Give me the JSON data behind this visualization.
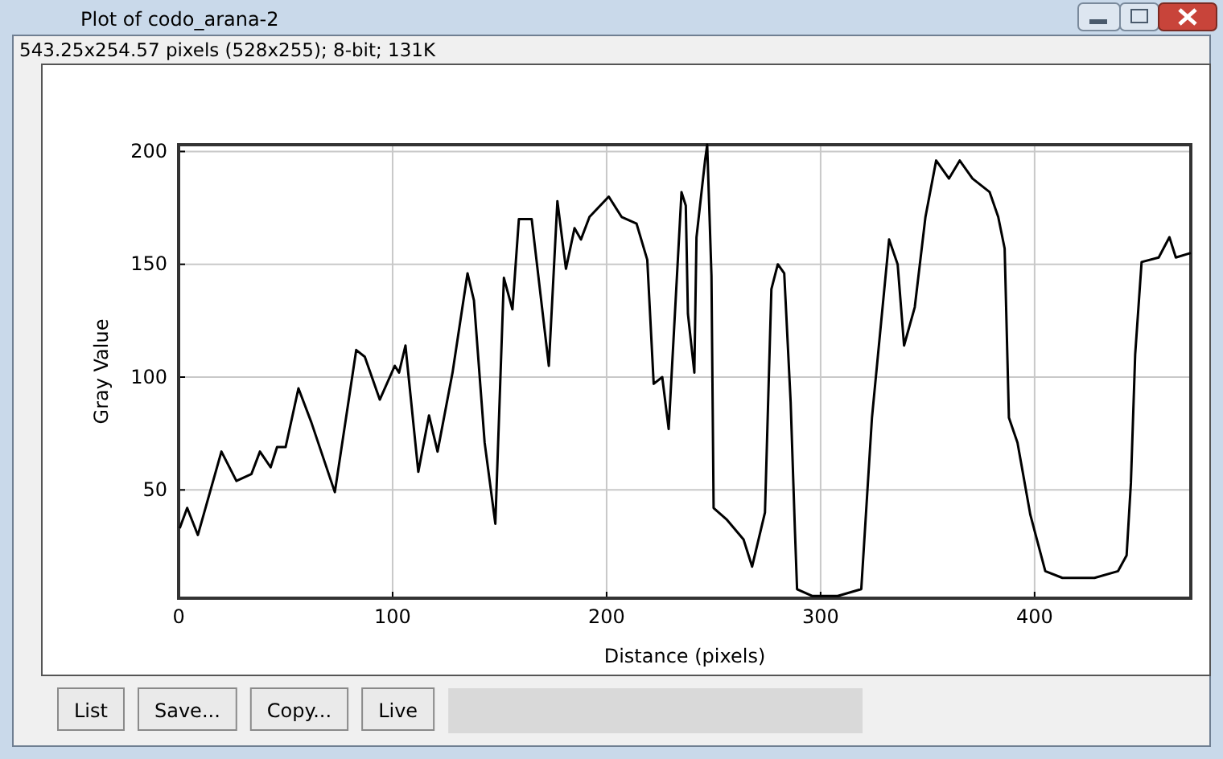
{
  "chart_data": {
    "type": "line",
    "title": "Plot of codo_arana-2",
    "subtitle": "543.25x254.57 pixels (528x255); 8-bit; 131K",
    "xlabel": "Distance (pixels)",
    "ylabel": "Gray Value",
    "annotations": [
      "List",
      "Save...",
      "Copy...",
      "Live"
    ],
    "x": [
      0.5,
      4,
      9,
      20,
      27,
      34,
      38,
      43,
      46,
      50,
      56,
      62,
      73,
      83,
      87,
      94,
      101,
      103,
      106,
      112,
      117,
      121,
      128,
      135,
      138,
      143,
      148,
      152,
      156,
      159,
      165,
      173,
      177,
      181,
      185,
      188,
      192,
      201,
      207,
      214,
      219,
      222,
      226,
      229,
      235,
      237,
      238,
      241,
      242,
      246,
      247,
      249,
      250,
      256,
      264,
      268,
      274,
      277,
      280,
      283,
      286,
      288,
      289,
      296,
      308,
      319,
      324,
      332,
      336,
      339,
      344,
      349,
      354,
      360,
      365,
      371,
      379,
      383,
      386,
      388,
      392,
      398,
      405,
      413,
      428,
      439,
      443,
      445,
      447,
      450,
      458,
      463,
      466,
      473
    ],
    "series": [
      {
        "color": "#000000",
        "values": [
          33,
          42,
          30,
          67,
          54,
          57,
          67,
          60,
          69,
          69,
          95,
          80,
          49,
          112,
          109,
          90,
          105,
          102,
          114,
          58,
          83,
          67,
          102,
          146,
          134,
          71,
          35,
          144,
          130,
          170,
          170,
          105,
          178,
          148,
          166,
          161,
          171,
          180,
          171,
          168,
          152,
          97,
          100,
          77,
          182,
          176,
          128,
          102,
          162,
          196,
          203,
          145,
          42,
          37,
          28,
          16,
          40,
          139,
          150,
          146,
          89,
          32,
          6,
          3,
          3,
          6,
          82,
          161,
          150,
          114,
          131,
          171,
          196,
          188,
          196,
          188,
          182,
          171,
          157,
          82,
          71,
          39,
          14,
          11,
          11,
          14,
          21,
          53,
          110,
          151,
          153,
          162,
          153,
          155
        ]
      }
    ],
    "xlim": [
      0,
      473
    ],
    "ylim": [
      2,
      203
    ],
    "xticks": [
      0,
      100,
      200,
      300,
      400
    ],
    "yticks": [
      50,
      100,
      150,
      200
    ],
    "grid": true,
    "marker": "none",
    "line_style": "solid"
  }
}
